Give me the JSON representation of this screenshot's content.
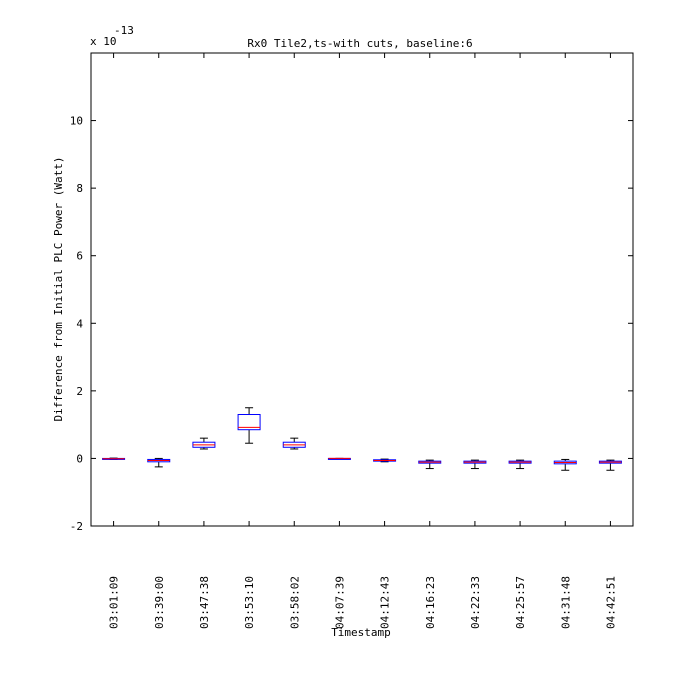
{
  "chart_data": {
    "type": "box",
    "title": "Rx0 Tile2,ts-with cuts, baseline:6",
    "xlabel": "Timestamp",
    "ylabel": "Difference from Initial PLC Power (Watt)",
    "scale_label": "x 10",
    "scale_exponent": "-13",
    "ylim": [
      -2,
      12
    ],
    "yticks": [
      -2,
      0,
      2,
      4,
      6,
      8,
      10
    ],
    "categories": [
      "03:01:09",
      "03:39:00",
      "03:47:38",
      "03:53:10",
      "03:58:02",
      "04:07:39",
      "04:12:43",
      "04:16:23",
      "04:22:33",
      "04:25:57",
      "04:31:48",
      "04:42:51"
    ],
    "boxes": [
      {
        "min": -0.03,
        "q1": -0.02,
        "median": -0.01,
        "q3": 0.0,
        "max": 0.01
      },
      {
        "min": -0.25,
        "q1": -0.1,
        "median": -0.06,
        "q3": -0.03,
        "max": 0.0
      },
      {
        "min": 0.28,
        "q1": 0.33,
        "median": 0.4,
        "q3": 0.48,
        "max": 0.6
      },
      {
        "min": 0.45,
        "q1": 0.85,
        "median": 0.92,
        "q3": 1.3,
        "max": 1.5
      },
      {
        "min": 0.28,
        "q1": 0.33,
        "median": 0.4,
        "q3": 0.48,
        "max": 0.6
      },
      {
        "min": 0.0,
        "q1": 0.0,
        "median": 0.0,
        "q3": 0.0,
        "max": 0.0
      },
      {
        "min": -0.1,
        "q1": -0.08,
        "median": -0.06,
        "q3": -0.04,
        "max": -0.02
      },
      {
        "min": -0.3,
        "q1": -0.14,
        "median": -0.11,
        "q3": -0.08,
        "max": -0.05
      },
      {
        "min": -0.3,
        "q1": -0.14,
        "median": -0.11,
        "q3": -0.08,
        "max": -0.05
      },
      {
        "min": -0.3,
        "q1": -0.14,
        "median": -0.11,
        "q3": -0.08,
        "max": -0.05
      },
      {
        "min": -0.35,
        "q1": -0.16,
        "median": -0.12,
        "q3": -0.08,
        "max": -0.03
      },
      {
        "min": -0.35,
        "q1": -0.14,
        "median": -0.11,
        "q3": -0.08,
        "max": -0.05
      }
    ],
    "box_color": "#0000ff",
    "median_color": "#ff0000",
    "whisker_color": "#000000",
    "outlier_color": "#ff0000",
    "grid": false,
    "legend": "none"
  }
}
